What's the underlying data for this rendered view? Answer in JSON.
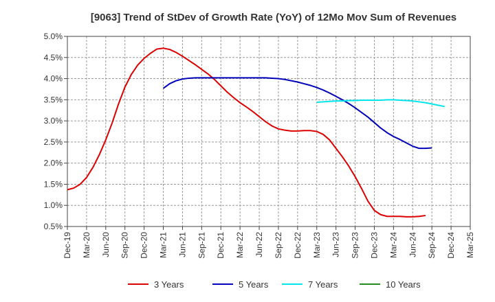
{
  "chart_data": {
    "type": "line",
    "title": "[9063]  Trend of StDev of Growth Rate (YoY) of 12Mo Mov Sum of Revenues",
    "xlabel": "",
    "ylabel": "",
    "ylim": [
      0.005,
      0.05
    ],
    "y_ticks": [
      0.005,
      0.01,
      0.015,
      0.02,
      0.025,
      0.03,
      0.035,
      0.04,
      0.045,
      0.05
    ],
    "y_tick_labels": [
      "0.5%",
      "1.0%",
      "1.5%",
      "2.0%",
      "2.5%",
      "3.0%",
      "3.5%",
      "4.0%",
      "4.5%",
      "5.0%"
    ],
    "x_tick_labels": [
      "Dec-19",
      "Mar-20",
      "Jun-20",
      "Sep-20",
      "Dec-20",
      "Mar-21",
      "Jun-21",
      "Sep-21",
      "Dec-21",
      "Mar-22",
      "Jun-22",
      "Sep-22",
      "Dec-22",
      "Mar-23",
      "Jun-23",
      "Sep-23",
      "Dec-23",
      "Mar-24",
      "Jun-24",
      "Sep-24",
      "Dec-24",
      "Mar-25"
    ],
    "x_start": "Dec-19",
    "x_count_months": 63,
    "grid": true,
    "legend_position": "bottom",
    "series": [
      {
        "name": "3 Years",
        "color": "#dd0000",
        "start_offset": 0,
        "values": [
          0.0137,
          0.0141,
          0.015,
          0.0166,
          0.019,
          0.022,
          0.0255,
          0.0295,
          0.034,
          0.038,
          0.041,
          0.0432,
          0.0448,
          0.046,
          0.047,
          0.0472,
          0.0469,
          0.0462,
          0.0453,
          0.0443,
          0.0433,
          0.0422,
          0.0411,
          0.0398,
          0.0383,
          0.0368,
          0.0355,
          0.0343,
          0.0333,
          0.0322,
          0.031,
          0.0298,
          0.0288,
          0.0281,
          0.0278,
          0.0276,
          0.0276,
          0.0277,
          0.0277,
          0.0275,
          0.0268,
          0.0255,
          0.0235,
          0.0215,
          0.0193,
          0.0168,
          0.014,
          0.011,
          0.0088,
          0.0078,
          0.0074,
          0.0074,
          0.0074,
          0.0073,
          0.0073,
          0.0074,
          0.0076
        ]
      },
      {
        "name": "5 Years",
        "color": "#0000bb",
        "start_offset": 15,
        "values": [
          0.0377,
          0.0388,
          0.0395,
          0.0399,
          0.0401,
          0.0402,
          0.0402,
          0.0402,
          0.0402,
          0.0402,
          0.0402,
          0.0402,
          0.0402,
          0.0402,
          0.0402,
          0.0402,
          0.0402,
          0.0401,
          0.04,
          0.0398,
          0.0395,
          0.0392,
          0.0388,
          0.0384,
          0.0379,
          0.0373,
          0.0366,
          0.0358,
          0.035,
          0.0341,
          0.0331,
          0.032,
          0.0309,
          0.0296,
          0.0283,
          0.0272,
          0.0263,
          0.0256,
          0.0248,
          0.024,
          0.0235,
          0.0235,
          0.0236
        ]
      },
      {
        "name": "7 Years",
        "color": "#00e5ee",
        "start_offset": 39,
        "values": [
          0.0344,
          0.0345,
          0.0346,
          0.0347,
          0.0347,
          0.0348,
          0.0348,
          0.0349,
          0.0349,
          0.0349,
          0.0349,
          0.035,
          0.035,
          0.0349,
          0.0348,
          0.0347,
          0.0345,
          0.0343,
          0.034,
          0.0337,
          0.0334
        ]
      },
      {
        "name": "10 Years",
        "color": "#228b22",
        "start_offset": 0,
        "values": []
      }
    ]
  }
}
